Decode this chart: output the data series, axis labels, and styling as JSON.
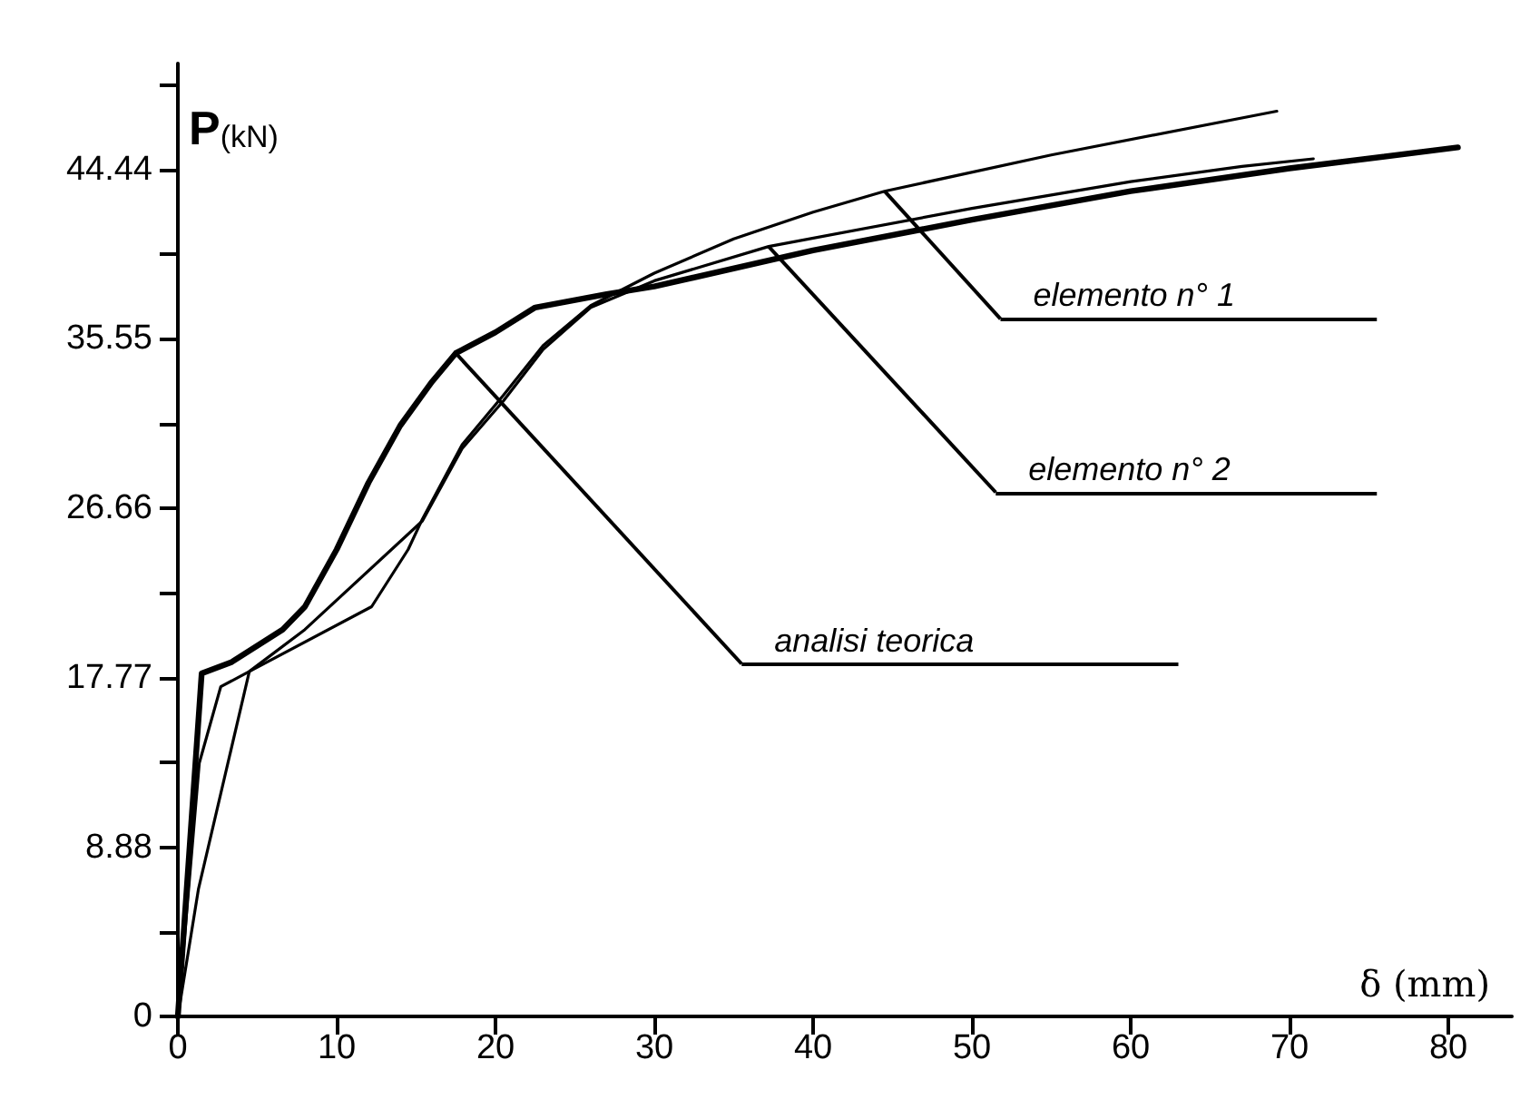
{
  "chart_data": {
    "type": "line",
    "xlabel": "δ (mm)",
    "ylabel": "P(kN)",
    "xlim": [
      0,
      84
    ],
    "ylim": [
      0,
      50
    ],
    "xticks": [
      0,
      10,
      20,
      30,
      40,
      50,
      60,
      70,
      80
    ],
    "yticks": [
      0,
      {
        "value": 4.44,
        "label": null
      },
      8.88,
      {
        "value": 13.33,
        "label": null
      },
      17.77,
      {
        "value": 22.22,
        "label": null
      },
      26.66,
      {
        "value": 31.11,
        "label": null
      },
      35.55,
      {
        "value": 40,
        "label": null
      },
      44.44,
      {
        "value": 48.88,
        "label": null
      }
    ],
    "annotations": [
      {
        "text": "elemento n° 1",
        "x": 44.5,
        "y": 43.3
      },
      {
        "text": "elemento n° 2",
        "x": 37.2,
        "y": 40.4
      },
      {
        "text": "analisi teorica",
        "x": 17.5,
        "y": 34.8
      }
    ],
    "grid": false,
    "marker": "none",
    "line_style": "solid",
    "series": [
      {
        "color": "#000000",
        "x": [
          0,
          1.3,
          4.5,
          12.2,
          14.5,
          15.4,
          17.9,
          20.5,
          23,
          26,
          30,
          35,
          40,
          44.5,
          55,
          69.2
        ],
        "values": [
          0,
          6.7,
          18.1,
          21.5,
          24.5,
          26.1,
          30,
          32.6,
          35.2,
          37.3,
          39,
          40.8,
          42.2,
          43.3,
          45.2,
          47.5
        ]
      },
      {
        "color": "#000000",
        "x": [
          0,
          1.35,
          2.7,
          4.5,
          8,
          15.4,
          17.9,
          20.5,
          23,
          26,
          30,
          37.2,
          50,
          60,
          67,
          71.5
        ],
        "values": [
          0,
          13.3,
          17.3,
          18.1,
          20.3,
          26,
          29.8,
          32.3,
          35,
          37.2,
          38.6,
          40.4,
          42.4,
          43.8,
          44.6,
          45
        ]
      },
      {
        "color": "#000000",
        "x": [
          0,
          1.5,
          3.4,
          6.6,
          8,
          10,
          12,
          14,
          16,
          17.5,
          20,
          22.5,
          27,
          30,
          40,
          50,
          60,
          70,
          80.6
        ],
        "values": [
          0,
          18,
          18.6,
          20.3,
          21.5,
          24.5,
          28,
          31,
          33.3,
          34.8,
          35.9,
          37.2,
          37.9,
          38.3,
          40.2,
          41.8,
          43.3,
          44.5,
          45.6
        ]
      }
    ]
  }
}
